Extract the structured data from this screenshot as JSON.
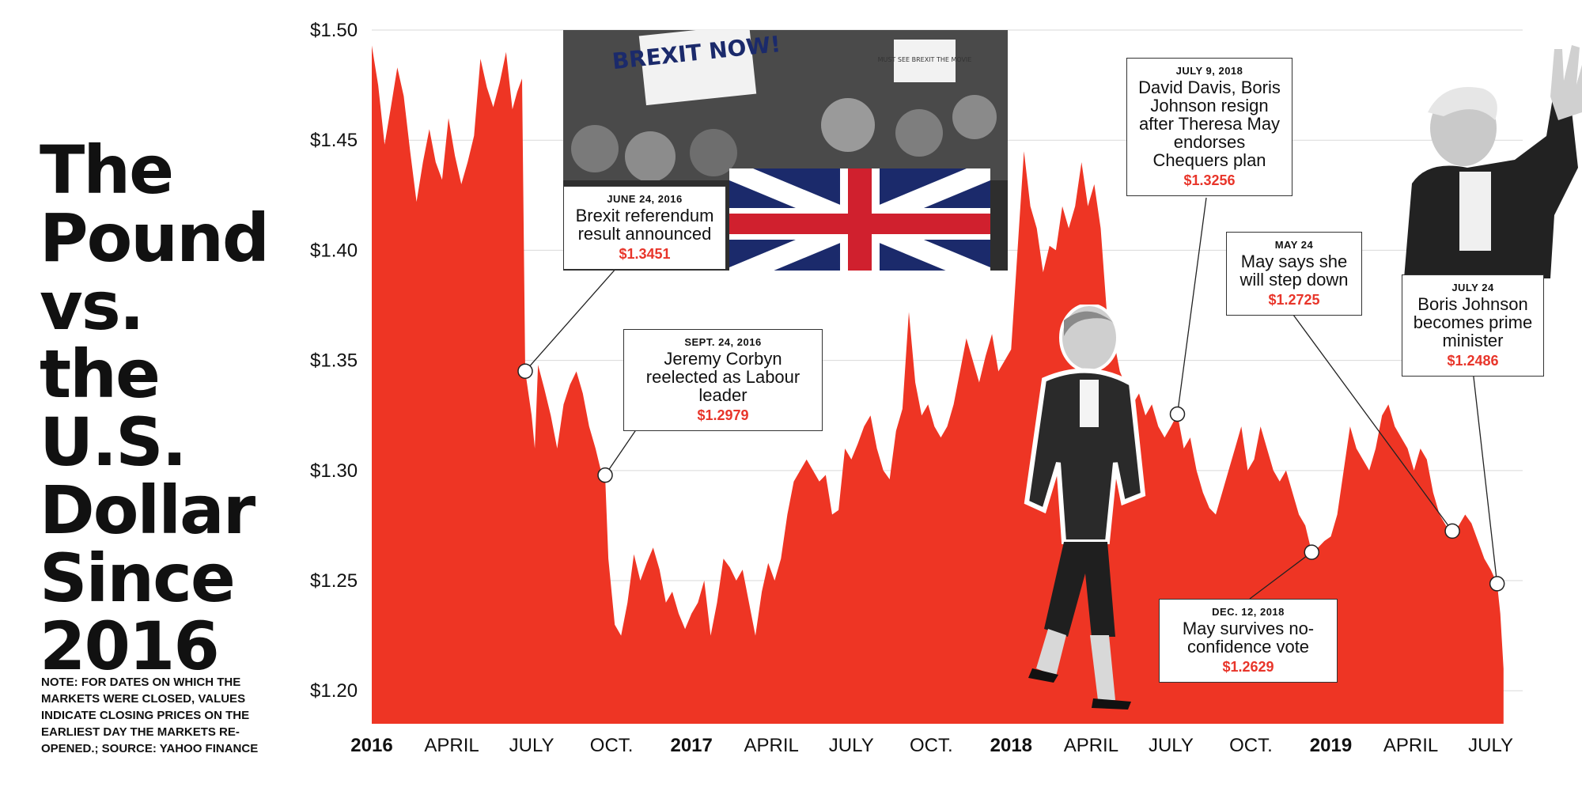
{
  "title": [
    "The",
    "Pound",
    "vs. the",
    "U.S.",
    "Dollar",
    "Since",
    "2016"
  ],
  "note": "NOTE: FOR DATES ON WHICH THE MARKETS WERE CLOSED, VALUES INDICATE CLOSING PRICES ON THE EARLIEST DAY THE MARKETS RE-OPENED.; SOURCE: YAHOO FINANCE",
  "photo_text": {
    "sign1": "BREXIT NOW!",
    "sign2": "MUST SEE BREXIT THE MOVIE"
  },
  "colors": {
    "area": "#ee3524",
    "price": "#e8352a",
    "grid": "#d9d9d9"
  },
  "chart_data": {
    "type": "area",
    "yunit": "USD per GBP",
    "ylim": [
      1.185,
      1.5
    ],
    "yticks": [
      1.2,
      1.25,
      1.3,
      1.35,
      1.4,
      1.45,
      1.5
    ],
    "ytick_labels": [
      "$1.20",
      "$1.25",
      "$1.30",
      "$1.35",
      "$1.40",
      "$1.45",
      "$1.50"
    ],
    "xlim": [
      2016.0,
      2019.6
    ],
    "xticks": [
      {
        "x": 2016.0,
        "label": "2016",
        "year": true
      },
      {
        "x": 2016.25,
        "label": "APRIL",
        "year": false
      },
      {
        "x": 2016.5,
        "label": "JULY",
        "year": false
      },
      {
        "x": 2016.75,
        "label": "OCT.",
        "year": false
      },
      {
        "x": 2017.0,
        "label": "2017",
        "year": true
      },
      {
        "x": 2017.25,
        "label": "APRIL",
        "year": false
      },
      {
        "x": 2017.5,
        "label": "JULY",
        "year": false
      },
      {
        "x": 2017.75,
        "label": "OCT.",
        "year": false
      },
      {
        "x": 2018.0,
        "label": "2018",
        "year": true
      },
      {
        "x": 2018.25,
        "label": "APRIL",
        "year": false
      },
      {
        "x": 2018.5,
        "label": "JULY",
        "year": false
      },
      {
        "x": 2018.75,
        "label": "OCT.",
        "year": false
      },
      {
        "x": 2019.0,
        "label": "2019",
        "year": true
      },
      {
        "x": 2019.25,
        "label": "APRIL",
        "year": false
      },
      {
        "x": 2019.5,
        "label": "JULY",
        "year": false
      }
    ],
    "points": [
      [
        2016.0,
        1.493
      ],
      [
        2016.02,
        1.475
      ],
      [
        2016.04,
        1.448
      ],
      [
        2016.06,
        1.465
      ],
      [
        2016.08,
        1.483
      ],
      [
        2016.1,
        1.47
      ],
      [
        2016.12,
        1.445
      ],
      [
        2016.14,
        1.422
      ],
      [
        2016.16,
        1.44
      ],
      [
        2016.18,
        1.455
      ],
      [
        2016.2,
        1.44
      ],
      [
        2016.22,
        1.432
      ],
      [
        2016.24,
        1.46
      ],
      [
        2016.26,
        1.443
      ],
      [
        2016.28,
        1.43
      ],
      [
        2016.3,
        1.44
      ],
      [
        2016.32,
        1.452
      ],
      [
        2016.34,
        1.487
      ],
      [
        2016.36,
        1.474
      ],
      [
        2016.38,
        1.465
      ],
      [
        2016.4,
        1.476
      ],
      [
        2016.42,
        1.49
      ],
      [
        2016.44,
        1.464
      ],
      [
        2016.455,
        1.472
      ],
      [
        2016.47,
        1.478
      ],
      [
        2016.48,
        1.3451
      ],
      [
        2016.5,
        1.325
      ],
      [
        2016.51,
        1.31
      ],
      [
        2016.52,
        1.348
      ],
      [
        2016.54,
        1.337
      ],
      [
        2016.56,
        1.325
      ],
      [
        2016.58,
        1.31
      ],
      [
        2016.6,
        1.33
      ],
      [
        2016.62,
        1.339
      ],
      [
        2016.64,
        1.345
      ],
      [
        2016.66,
        1.335
      ],
      [
        2016.68,
        1.32
      ],
      [
        2016.7,
        1.31
      ],
      [
        2016.72,
        1.298
      ],
      [
        2016.73,
        1.2979
      ],
      [
        2016.74,
        1.26
      ],
      [
        2016.76,
        1.23
      ],
      [
        2016.78,
        1.225
      ],
      [
        2016.8,
        1.24
      ],
      [
        2016.82,
        1.262
      ],
      [
        2016.84,
        1.25
      ],
      [
        2016.86,
        1.258
      ],
      [
        2016.88,
        1.265
      ],
      [
        2016.9,
        1.255
      ],
      [
        2016.92,
        1.24
      ],
      [
        2016.94,
        1.245
      ],
      [
        2016.96,
        1.235
      ],
      [
        2016.98,
        1.228
      ],
      [
        2017.0,
        1.235
      ],
      [
        2017.02,
        1.24
      ],
      [
        2017.04,
        1.25
      ],
      [
        2017.06,
        1.225
      ],
      [
        2017.08,
        1.24
      ],
      [
        2017.1,
        1.26
      ],
      [
        2017.12,
        1.256
      ],
      [
        2017.14,
        1.25
      ],
      [
        2017.16,
        1.255
      ],
      [
        2017.18,
        1.24
      ],
      [
        2017.2,
        1.225
      ],
      [
        2017.22,
        1.245
      ],
      [
        2017.24,
        1.258
      ],
      [
        2017.26,
        1.25
      ],
      [
        2017.28,
        1.26
      ],
      [
        2017.3,
        1.28
      ],
      [
        2017.32,
        1.295
      ],
      [
        2017.34,
        1.3
      ],
      [
        2017.36,
        1.305
      ],
      [
        2017.38,
        1.3
      ],
      [
        2017.4,
        1.295
      ],
      [
        2017.42,
        1.298
      ],
      [
        2017.44,
        1.28
      ],
      [
        2017.46,
        1.282
      ],
      [
        2017.48,
        1.31
      ],
      [
        2017.5,
        1.305
      ],
      [
        2017.52,
        1.312
      ],
      [
        2017.54,
        1.32
      ],
      [
        2017.56,
        1.325
      ],
      [
        2017.58,
        1.31
      ],
      [
        2017.6,
        1.3
      ],
      [
        2017.62,
        1.296
      ],
      [
        2017.64,
        1.318
      ],
      [
        2017.66,
        1.328
      ],
      [
        2017.68,
        1.372
      ],
      [
        2017.7,
        1.34
      ],
      [
        2017.72,
        1.325
      ],
      [
        2017.74,
        1.33
      ],
      [
        2017.76,
        1.32
      ],
      [
        2017.78,
        1.315
      ],
      [
        2017.8,
        1.32
      ],
      [
        2017.82,
        1.33
      ],
      [
        2017.84,
        1.345
      ],
      [
        2017.86,
        1.36
      ],
      [
        2017.88,
        1.35
      ],
      [
        2017.9,
        1.34
      ],
      [
        2017.92,
        1.352
      ],
      [
        2017.94,
        1.362
      ],
      [
        2017.96,
        1.345
      ],
      [
        2017.98,
        1.35
      ],
      [
        2018.0,
        1.355
      ],
      [
        2018.02,
        1.4
      ],
      [
        2018.04,
        1.445
      ],
      [
        2018.06,
        1.42
      ],
      [
        2018.08,
        1.41
      ],
      [
        2018.1,
        1.39
      ],
      [
        2018.12,
        1.402
      ],
      [
        2018.14,
        1.4
      ],
      [
        2018.16,
        1.42
      ],
      [
        2018.18,
        1.41
      ],
      [
        2018.2,
        1.42
      ],
      [
        2018.22,
        1.44
      ],
      [
        2018.24,
        1.42
      ],
      [
        2018.26,
        1.43
      ],
      [
        2018.28,
        1.41
      ],
      [
        2018.3,
        1.37
      ],
      [
        2018.32,
        1.36
      ],
      [
        2018.34,
        1.345
      ],
      [
        2018.36,
        1.338
      ],
      [
        2018.38,
        1.33
      ],
      [
        2018.4,
        1.335
      ],
      [
        2018.42,
        1.325
      ],
      [
        2018.44,
        1.33
      ],
      [
        2018.46,
        1.32
      ],
      [
        2018.48,
        1.315
      ],
      [
        2018.5,
        1.32
      ],
      [
        2018.52,
        1.3256
      ],
      [
        2018.54,
        1.31
      ],
      [
        2018.56,
        1.315
      ],
      [
        2018.58,
        1.3
      ],
      [
        2018.6,
        1.29
      ],
      [
        2018.62,
        1.283
      ],
      [
        2018.64,
        1.28
      ],
      [
        2018.66,
        1.29
      ],
      [
        2018.68,
        1.3
      ],
      [
        2018.7,
        1.31
      ],
      [
        2018.72,
        1.32
      ],
      [
        2018.74,
        1.3
      ],
      [
        2018.76,
        1.305
      ],
      [
        2018.78,
        1.32
      ],
      [
        2018.8,
        1.31
      ],
      [
        2018.82,
        1.3
      ],
      [
        2018.84,
        1.295
      ],
      [
        2018.86,
        1.3
      ],
      [
        2018.88,
        1.29
      ],
      [
        2018.9,
        1.28
      ],
      [
        2018.92,
        1.275
      ],
      [
        2018.94,
        1.2629
      ],
      [
        2018.96,
        1.265
      ],
      [
        2018.98,
        1.268
      ],
      [
        2019.0,
        1.27
      ],
      [
        2019.02,
        1.28
      ],
      [
        2019.04,
        1.3
      ],
      [
        2019.06,
        1.32
      ],
      [
        2019.08,
        1.31
      ],
      [
        2019.1,
        1.305
      ],
      [
        2019.12,
        1.3
      ],
      [
        2019.14,
        1.31
      ],
      [
        2019.16,
        1.325
      ],
      [
        2019.18,
        1.33
      ],
      [
        2019.2,
        1.32
      ],
      [
        2019.22,
        1.315
      ],
      [
        2019.24,
        1.31
      ],
      [
        2019.26,
        1.3
      ],
      [
        2019.28,
        1.31
      ],
      [
        2019.3,
        1.305
      ],
      [
        2019.32,
        1.29
      ],
      [
        2019.34,
        1.28
      ],
      [
        2019.36,
        1.275
      ],
      [
        2019.38,
        1.2725
      ],
      [
        2019.4,
        1.275
      ],
      [
        2019.42,
        1.28
      ],
      [
        2019.44,
        1.276
      ],
      [
        2019.46,
        1.268
      ],
      [
        2019.48,
        1.26
      ],
      [
        2019.5,
        1.255
      ],
      [
        2019.52,
        1.2486
      ],
      [
        2019.53,
        1.235
      ],
      [
        2019.54,
        1.21
      ]
    ],
    "annotations": [
      {
        "date": "JUNE 24, 2016",
        "text": "Brexit referendum result announced",
        "price": "$1.3451",
        "x": 2016.48,
        "y": 1.3451
      },
      {
        "date": "SEPT. 24, 2016",
        "text": "Jeremy Corbyn reelected as Labour leader",
        "price": "$1.2979",
        "x": 2016.73,
        "y": 1.2979
      },
      {
        "date": "JULY 9, 2018",
        "text": "David Davis, Boris Johnson resign after Theresa May endorses Chequers plan",
        "price": "$1.3256",
        "x": 2018.52,
        "y": 1.3256
      },
      {
        "date": "DEC. 12, 2018",
        "text": "May survives no-confidence vote",
        "price": "$1.2629",
        "x": 2018.94,
        "y": 1.2629
      },
      {
        "date": "MAY 24",
        "text": "May says she will step down",
        "price": "$1.2725",
        "x": 2019.38,
        "y": 1.2725
      },
      {
        "date": "JULY 24",
        "text": "Boris Johnson becomes prime minister",
        "price": "$1.2486",
        "x": 2019.52,
        "y": 1.2486
      }
    ]
  }
}
